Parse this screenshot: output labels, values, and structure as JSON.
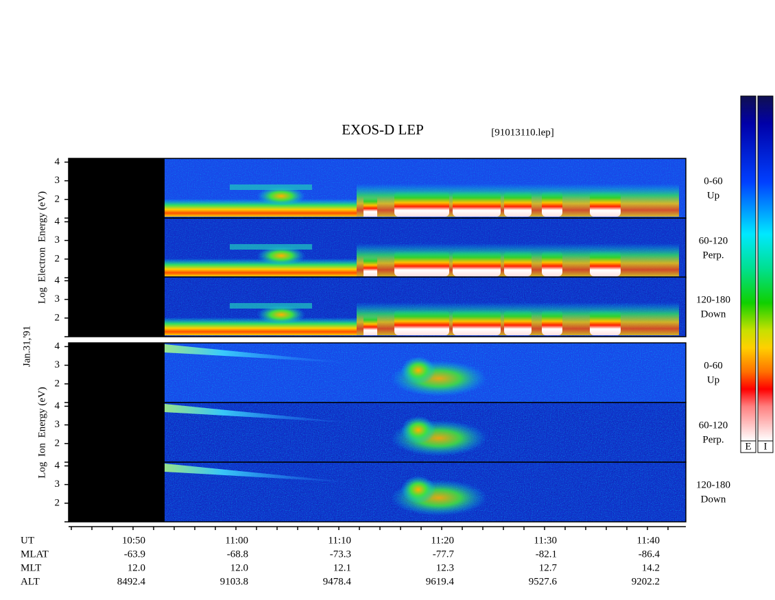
{
  "header": {
    "title": "EXOS-D LEP",
    "file": "[91013110.lep]"
  },
  "date": "Jan.31,'91",
  "electron_axis_label": "Log  Electron  Energy (eV)",
  "ion_axis_label": "Log  Ion  Energy (eV)",
  "energy_tick_labels": [
    "4",
    "3",
    "2"
  ],
  "pitch_angles": [
    {
      "range": "0-60",
      "direction": "Up"
    },
    {
      "range": "60-120",
      "direction": "Perp."
    },
    {
      "range": "120-180",
      "direction": "Down"
    }
  ],
  "colorbar_labels": [
    "E",
    "I"
  ],
  "orbit_table": {
    "rows": [
      {
        "label": "UT",
        "values": [
          "10:50",
          "11:00",
          "11:10",
          "11:20",
          "11:30",
          "11:40"
        ]
      },
      {
        "label": "MLAT",
        "values": [
          "-63.9",
          "-68.8",
          "-73.3",
          "-77.7",
          "-82.1",
          "-86.4"
        ]
      },
      {
        "label": "MLT",
        "values": [
          "12.0",
          "12.0",
          "12.1",
          "12.3",
          "12.7",
          "14.2"
        ]
      },
      {
        "label": "ALT",
        "values": [
          "8492.4",
          "9103.8",
          "9478.4",
          "9619.4",
          "9527.6",
          "9202.2"
        ]
      }
    ]
  }
}
